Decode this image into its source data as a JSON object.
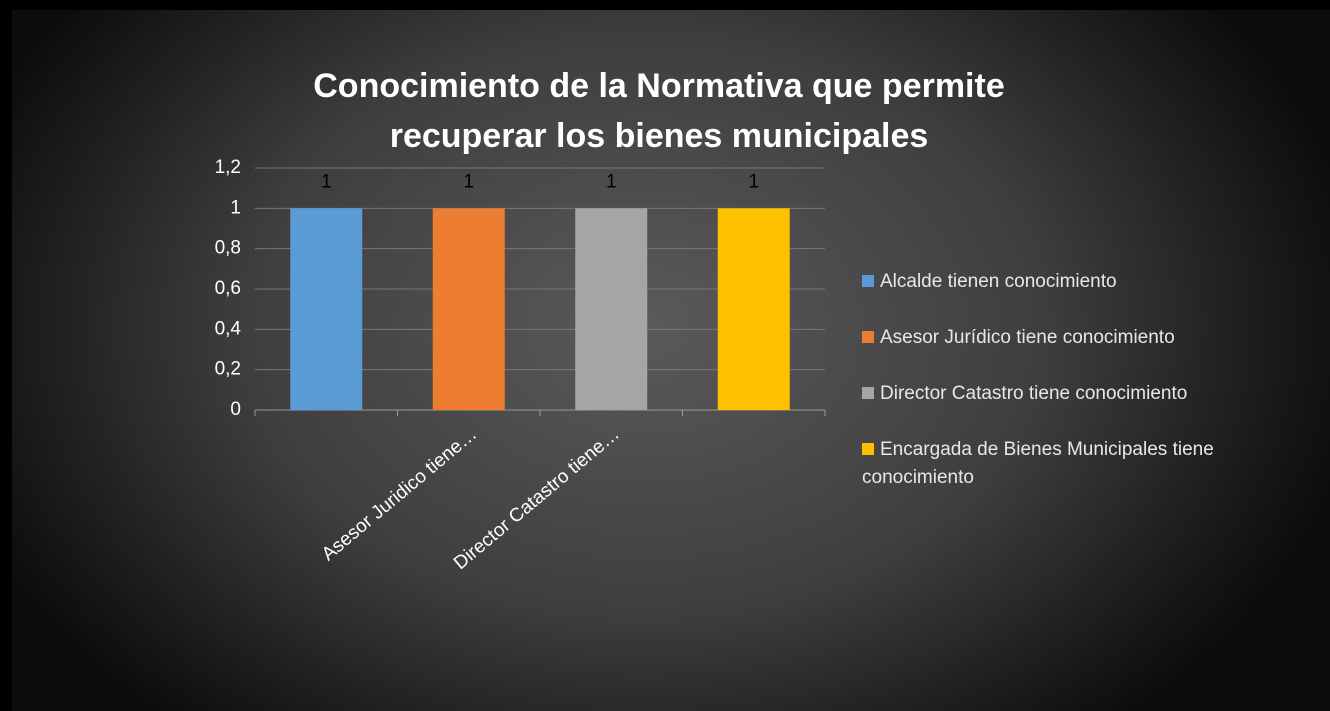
{
  "chart_data": {
    "type": "bar",
    "title": "Conocimiento de la Normativa que permite recuperar los bienes municipales",
    "categories": [
      "Alcalde tienen conocimiento",
      "Asesor Jurídico tiene conocimiento",
      "Director Catastro tiene conocimiento",
      "Encargada de Bienes Municipales tiene conocimiento"
    ],
    "x_tick_labels": [
      null,
      "Asesor Juridico tiene…",
      "Director Catastro tiene…",
      null
    ],
    "values": [
      1,
      1,
      1,
      1
    ],
    "colors": [
      "#5b9bd5",
      "#ed7d31",
      "#a5a5a5",
      "#ffc000"
    ],
    "ylim": [
      0,
      1.2
    ],
    "yticks": [
      0,
      {
        "value": 0.2,
        "label": "0,2"
      },
      {
        "value": 0.4,
        "label": "0,4"
      },
      {
        "value": 0.6,
        "label": "0,6"
      },
      {
        "value": 0.8,
        "label": "0,8"
      },
      1,
      {
        "value": 1.2,
        "label": "1,2"
      }
    ],
    "grid": true,
    "legend": "right"
  }
}
